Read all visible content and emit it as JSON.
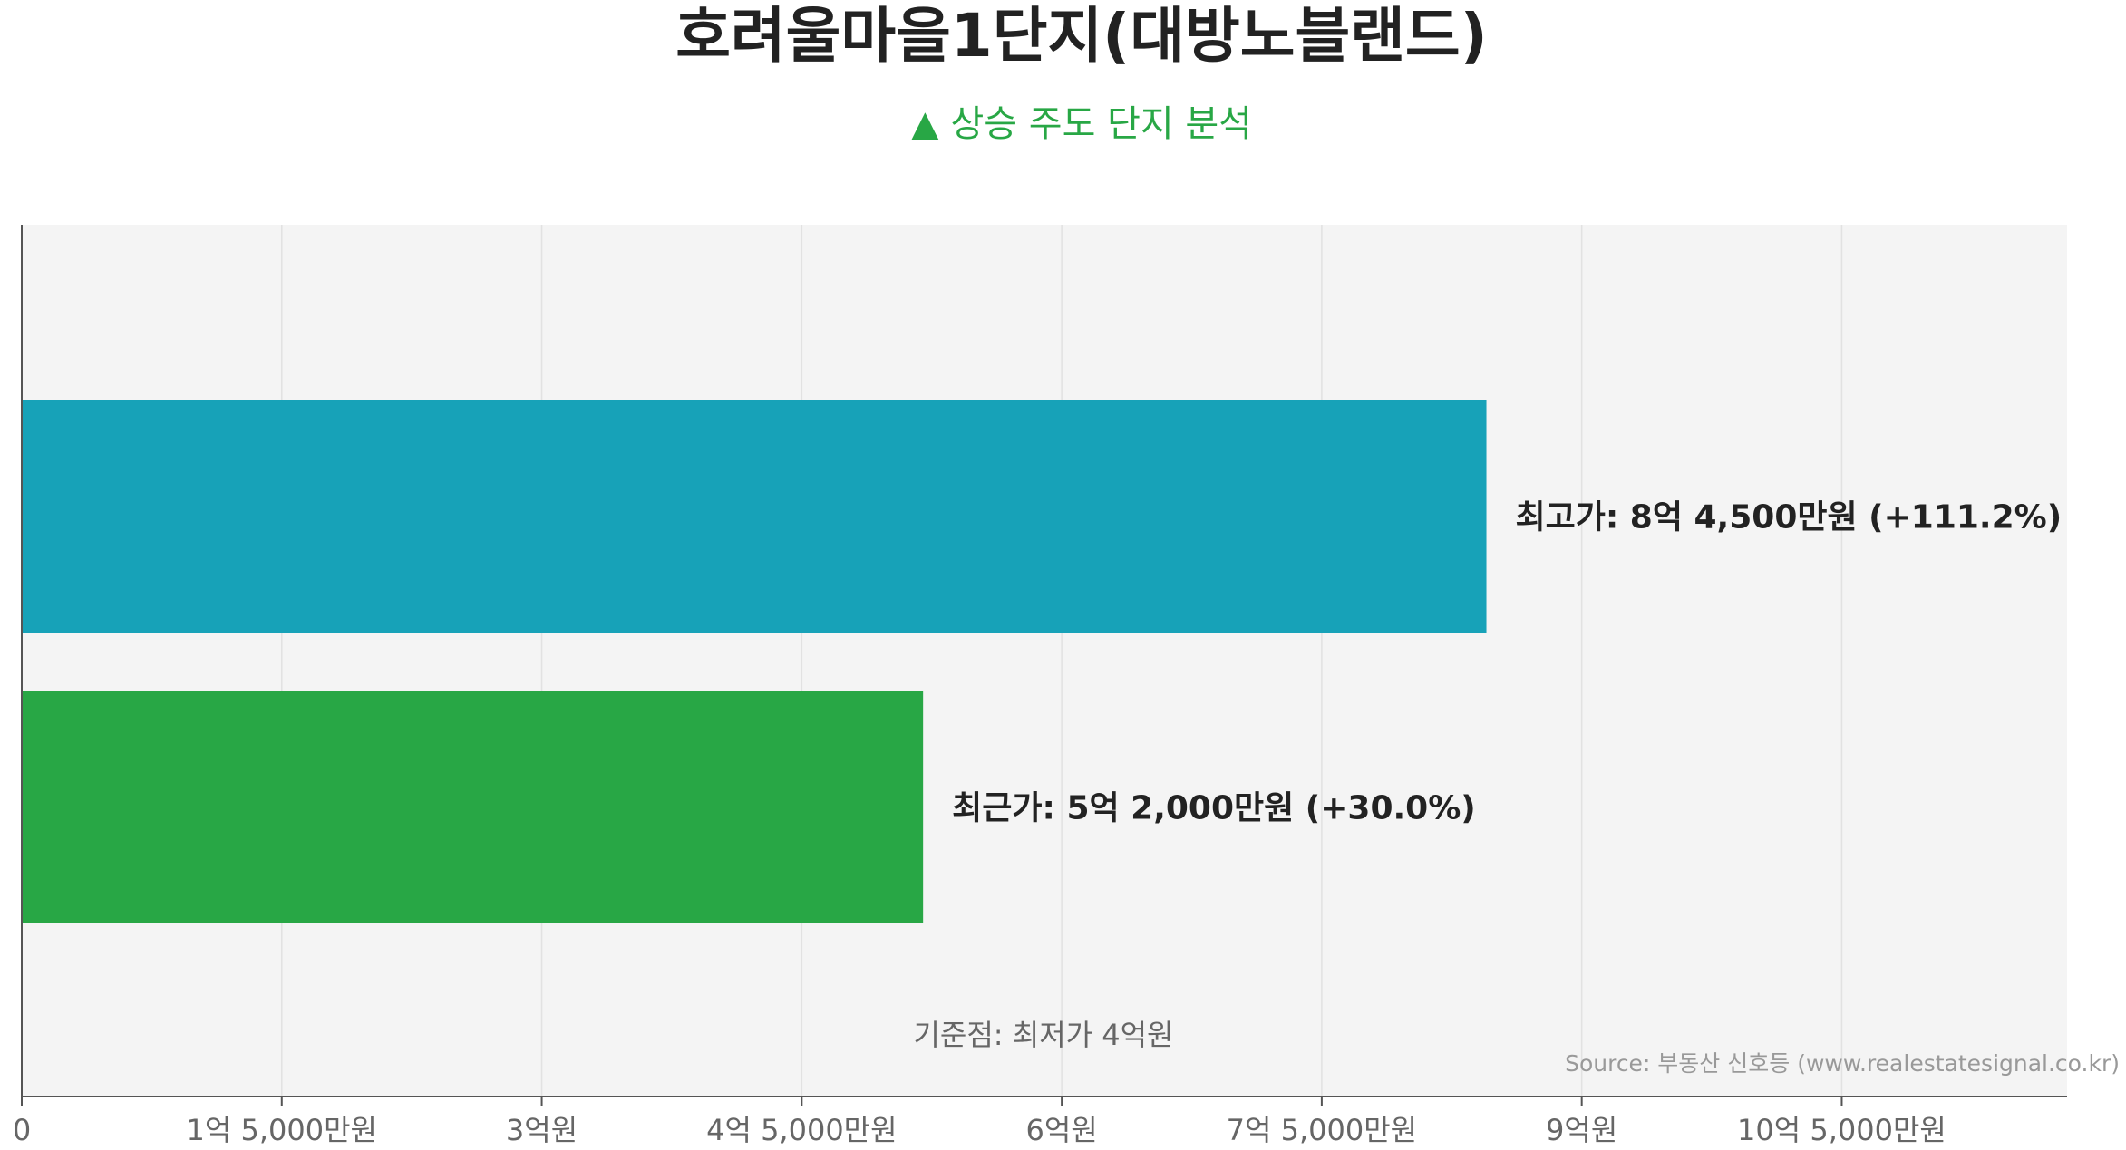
{
  "title": "호려울마을1단지(대방노블랜드)",
  "subtitle": "▲ 상승 주도 단지 분석",
  "source": "Source: 부동산 신호등 (www.realestatesignal.co.kr)",
  "baseline_note": "기준점: 최저가 4억원",
  "colors": {
    "title": "#222222",
    "subtitle": "#28a745",
    "plot_bg": "#f4f4f4",
    "grid": "#e2e2e2",
    "axis": "#555555",
    "tick_text": "#666666",
    "bar_high": "#17a2b8",
    "bar_recent": "#28a745",
    "label": "#222222",
    "note": "#666666",
    "source": "#999999"
  },
  "chart_data": {
    "type": "bar",
    "orientation": "horizontal",
    "x_unit": "원",
    "xlim": [
      0,
      1180000000
    ],
    "x_ticks": [
      {
        "value": 0,
        "label": "0"
      },
      {
        "value": 150000000,
        "label": "1억 5,000만원"
      },
      {
        "value": 300000000,
        "label": "3억원"
      },
      {
        "value": 450000000,
        "label": "4억 5,000만원"
      },
      {
        "value": 600000000,
        "label": "6억원"
      },
      {
        "value": 750000000,
        "label": "7억 5,000만원"
      },
      {
        "value": 900000000,
        "label": "9억원"
      },
      {
        "value": 1050000000,
        "label": "10억 5,000만원"
      }
    ],
    "bars": [
      {
        "value": 845000000,
        "label": "최고가: 8억 4,500만원 (+111.2%)",
        "color_key": "bar_high"
      },
      {
        "value": 520000000,
        "label": "최근가: 5억 2,000만원 (+30.0%)",
        "color_key": "bar_recent"
      }
    ],
    "grid": true
  }
}
